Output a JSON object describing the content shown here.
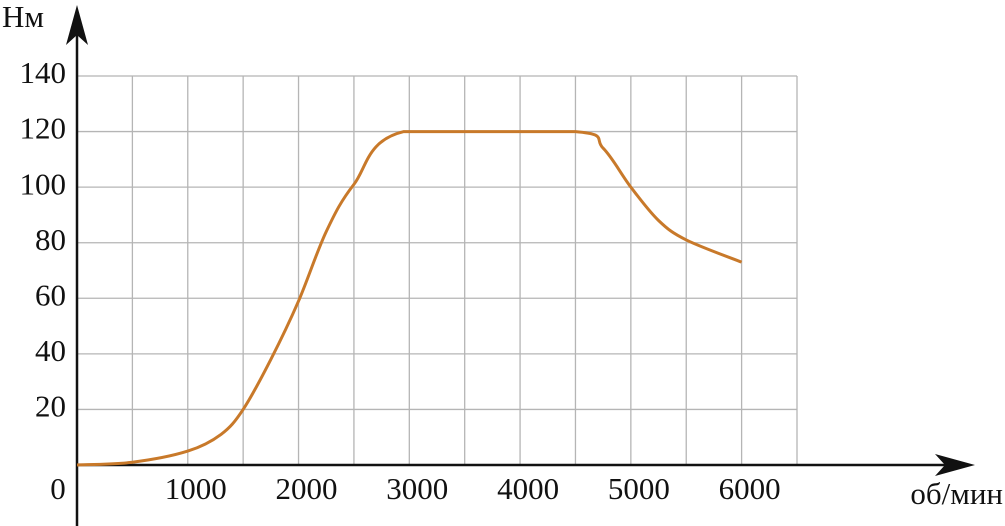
{
  "chart_data": {
    "type": "line",
    "y_label": "Нм",
    "x_label": "об/мин",
    "origin_label": "0",
    "x": [
      0,
      500,
      1000,
      1300,
      1500,
      1750,
      2000,
      2250,
      2500,
      2950,
      4500,
      4750,
      5000,
      5250,
      5500,
      6000
    ],
    "series": [
      {
        "color": "#c8792a",
        "values": [
          0,
          1,
          5,
          11,
          20,
          38,
          59,
          84,
          101,
          120,
          120,
          114,
          100,
          88,
          81,
          73
        ]
      }
    ],
    "xlim": [
      0,
      6500
    ],
    "ylim": [
      0,
      140
    ],
    "xticks": [
      1000,
      2000,
      3000,
      4000,
      5000,
      6000
    ],
    "xgrid": [
      500,
      1000,
      1500,
      2000,
      2500,
      3000,
      3500,
      4000,
      4500,
      5000,
      5500,
      6000,
      6500
    ],
    "yticks": [
      20,
      40,
      60,
      80,
      100,
      120,
      140
    ],
    "grid": true
  }
}
